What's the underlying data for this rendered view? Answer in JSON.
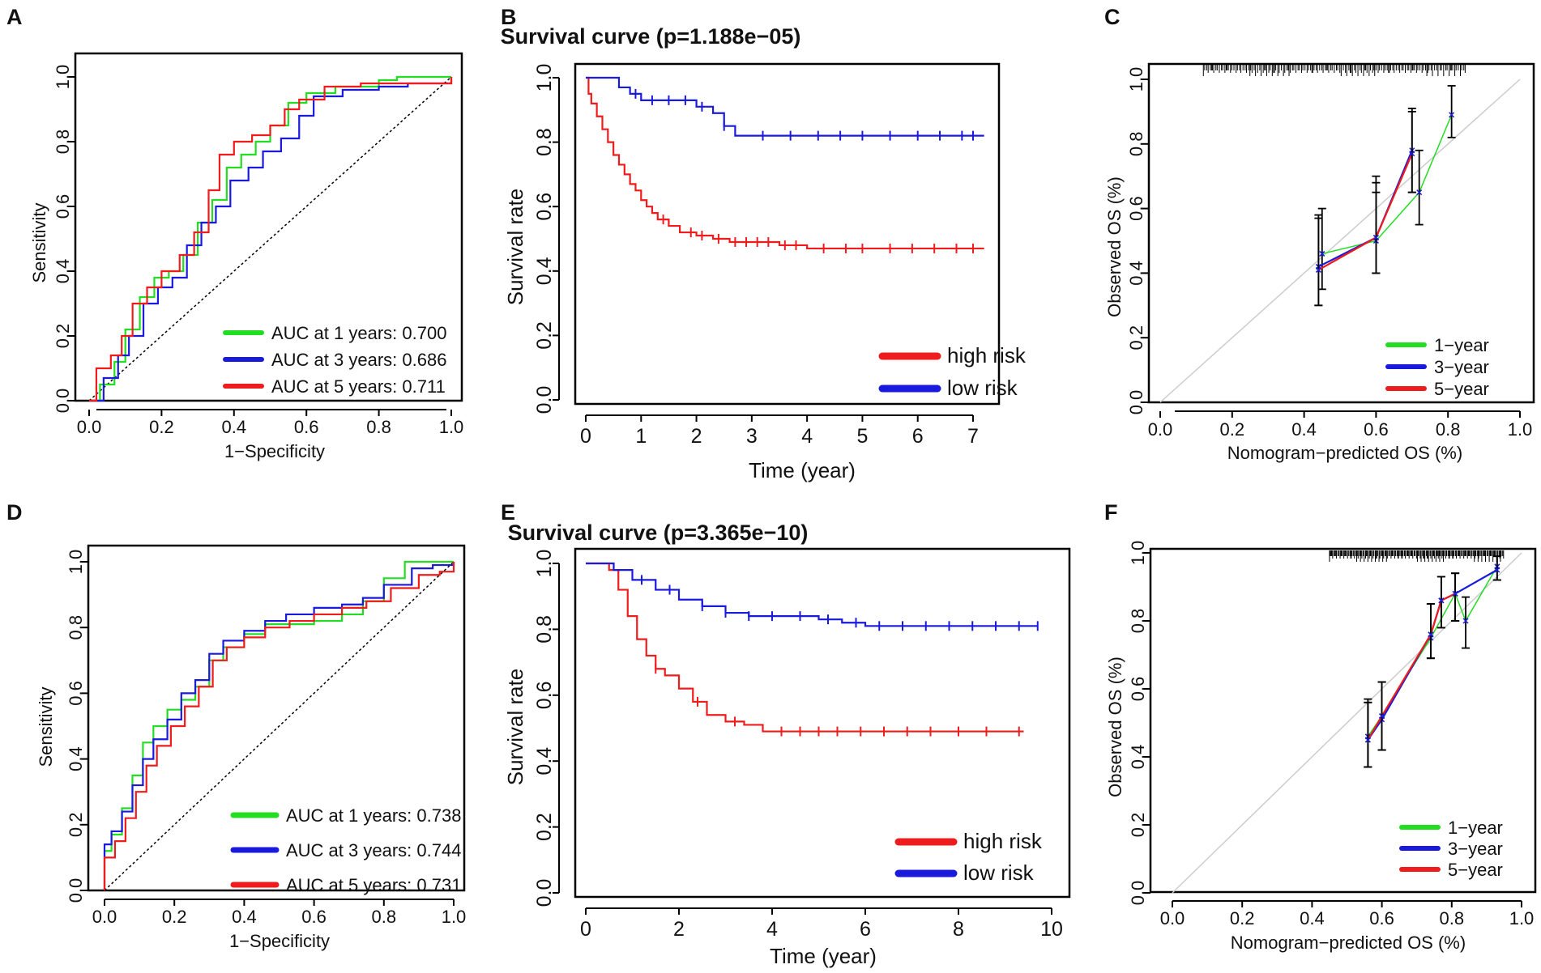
{
  "chart_data": [
    {
      "panel": "A",
      "type": "line",
      "subtype": "roc",
      "title": "",
      "xlabel": "1−Specificity",
      "ylabel": "Sensitivity",
      "xlim": [
        0,
        1
      ],
      "ylim": [
        0,
        1
      ],
      "xticks": [
        "0.0",
        "0.2",
        "0.4",
        "0.6",
        "0.8",
        "1.0"
      ],
      "yticks": [
        "0.0",
        "0.2",
        "0.4",
        "0.6",
        "0.8",
        "1.0"
      ],
      "diagonal": true,
      "legend_position": "bottom-right",
      "series": [
        {
          "name": "AUC at 1 years: 0.700",
          "color": "#22dd22",
          "x": [
            0,
            0.03,
            0.07,
            0.1,
            0.14,
            0.18,
            0.22,
            0.26,
            0.3,
            0.34,
            0.38,
            0.42,
            0.46,
            0.5,
            0.55,
            0.6,
            0.68,
            0.8,
            0.85,
            0.92,
            0.96,
            1.0
          ],
          "y": [
            0,
            0.05,
            0.12,
            0.22,
            0.32,
            0.38,
            0.4,
            0.45,
            0.55,
            0.62,
            0.72,
            0.76,
            0.8,
            0.85,
            0.92,
            0.95,
            0.97,
            0.99,
            1.0,
            1.0,
            1.0,
            1.0
          ]
        },
        {
          "name": "AUC at 3 years: 0.686",
          "color": "#1a1adc",
          "x": [
            0,
            0.04,
            0.08,
            0.11,
            0.15,
            0.19,
            0.23,
            0.27,
            0.31,
            0.35,
            0.39,
            0.44,
            0.48,
            0.53,
            0.58,
            0.62,
            0.7,
            0.8,
            0.88,
            0.94,
            1.0
          ],
          "y": [
            0,
            0.07,
            0.14,
            0.2,
            0.3,
            0.35,
            0.38,
            0.48,
            0.55,
            0.6,
            0.68,
            0.72,
            0.77,
            0.81,
            0.88,
            0.94,
            0.96,
            0.97,
            0.98,
            0.98,
            1.0
          ]
        },
        {
          "name": "AUC at 5 years: 0.711",
          "color": "#ee1c1c",
          "x": [
            0,
            0.02,
            0.06,
            0.09,
            0.12,
            0.16,
            0.2,
            0.25,
            0.29,
            0.33,
            0.36,
            0.4,
            0.45,
            0.5,
            0.54,
            0.58,
            0.65,
            0.75,
            0.85,
            0.95,
            1.0
          ],
          "y": [
            0,
            0.1,
            0.14,
            0.2,
            0.3,
            0.35,
            0.4,
            0.45,
            0.52,
            0.65,
            0.76,
            0.8,
            0.82,
            0.85,
            0.9,
            0.93,
            0.97,
            0.98,
            0.98,
            0.98,
            1.0
          ]
        }
      ]
    },
    {
      "panel": "B",
      "type": "line",
      "subtype": "kaplan-meier",
      "title": "Survival curve (p=1.188e−05)",
      "xlabel": "Time (year)",
      "ylabel": "Survival rate",
      "xlim": [
        0,
        7
      ],
      "ylim": [
        0,
        1
      ],
      "xticks": [
        "0",
        "1",
        "2",
        "3",
        "4",
        "5",
        "6",
        "7"
      ],
      "yticks": [
        "0.0",
        "0.2",
        "0.4",
        "0.6",
        "0.8",
        "1.0"
      ],
      "legend_position": "bottom-right",
      "series": [
        {
          "name": "high risk",
          "color": "#ee1c1c",
          "x": [
            0,
            0.05,
            0.1,
            0.2,
            0.3,
            0.4,
            0.5,
            0.6,
            0.7,
            0.8,
            0.9,
            1.0,
            1.1,
            1.2,
            1.3,
            1.5,
            1.7,
            2.0,
            2.3,
            2.6,
            3.0,
            3.5,
            4.0,
            7.2
          ],
          "y": [
            1.0,
            0.95,
            0.92,
            0.88,
            0.84,
            0.8,
            0.76,
            0.73,
            0.7,
            0.67,
            0.65,
            0.62,
            0.6,
            0.58,
            0.56,
            0.54,
            0.52,
            0.51,
            0.5,
            0.49,
            0.49,
            0.48,
            0.47,
            0.47
          ],
          "censor_x": [
            1.4,
            1.9,
            2.1,
            2.4,
            2.7,
            2.9,
            3.1,
            3.3,
            3.6,
            3.8,
            4.3,
            4.7,
            5.0,
            5.5,
            5.9,
            6.3,
            6.7,
            7.0
          ]
        },
        {
          "name": "low risk",
          "color": "#1a1adc",
          "x": [
            0,
            0.5,
            0.6,
            0.8,
            1.0,
            1.5,
            2.0,
            2.3,
            2.5,
            2.7,
            3.0,
            7.2
          ],
          "y": [
            1.0,
            1.0,
            0.97,
            0.95,
            0.93,
            0.93,
            0.91,
            0.89,
            0.85,
            0.82,
            0.82,
            0.82
          ],
          "censor_x": [
            0.9,
            1.2,
            1.5,
            1.8,
            2.1,
            2.5,
            3.2,
            3.7,
            4.2,
            4.6,
            5.0,
            5.5,
            6.0,
            6.4,
            6.8,
            7.0
          ]
        }
      ]
    },
    {
      "panel": "C",
      "type": "line",
      "subtype": "calibration",
      "title": "",
      "xlabel": "Nomogram−predicted OS (%)",
      "ylabel": "Observed OS (%)",
      "xlim": [
        0,
        1
      ],
      "ylim": [
        0,
        1
      ],
      "xticks": [
        "0.0",
        "0.2",
        "0.4",
        "0.6",
        "0.8",
        "1.0"
      ],
      "yticks": [
        "0.0",
        "0.2",
        "0.4",
        "0.6",
        "0.8",
        "1.0"
      ],
      "legend_position": "bottom-right",
      "series": [
        {
          "name": "1−year",
          "color": "#22dd22",
          "x": [
            0.45,
            0.6,
            0.72,
            0.81
          ],
          "y": [
            0.46,
            0.5,
            0.65,
            0.89
          ],
          "err_low": [
            0.35,
            0.4,
            0.55,
            0.82
          ],
          "err_high": [
            0.6,
            0.65,
            0.78,
            0.98
          ]
        },
        {
          "name": "3−year",
          "color": "#1a1adc",
          "x": [
            0.44,
            0.6,
            0.7
          ],
          "y": [
            0.42,
            0.51,
            0.78
          ],
          "err_low": [
            0.3,
            0.4,
            0.65
          ],
          "err_high": [
            0.58,
            0.7,
            0.91
          ]
        },
        {
          "name": "5−year",
          "color": "#ee1c1c",
          "x": [
            0.44,
            0.6,
            0.7
          ],
          "y": [
            0.41,
            0.51,
            0.77
          ],
          "err_low": [
            0.3,
            0.4,
            0.65
          ],
          "err_high": [
            0.57,
            0.68,
            0.9
          ]
        }
      ]
    },
    {
      "panel": "D",
      "type": "line",
      "subtype": "roc",
      "title": "",
      "xlabel": "1−Specificity",
      "ylabel": "Sensitivity",
      "xlim": [
        0,
        1
      ],
      "ylim": [
        0,
        1
      ],
      "xticks": [
        "0.0",
        "0.2",
        "0.4",
        "0.6",
        "0.8",
        "1.0"
      ],
      "yticks": [
        "0.0",
        "0.2",
        "0.4",
        "0.6",
        "0.8",
        "1.0"
      ],
      "diagonal": true,
      "legend_position": "bottom-right",
      "series": [
        {
          "name": "AUC at 1 years: 0.738",
          "color": "#22dd22",
          "x": [
            0,
            0.0,
            0.02,
            0.05,
            0.08,
            0.11,
            0.14,
            0.18,
            0.22,
            0.26,
            0.3,
            0.34,
            0.4,
            0.46,
            0.52,
            0.6,
            0.68,
            0.74,
            0.8,
            0.86,
            0.92,
            1.0
          ],
          "y": [
            0,
            0.12,
            0.17,
            0.25,
            0.35,
            0.45,
            0.5,
            0.55,
            0.58,
            0.62,
            0.7,
            0.74,
            0.78,
            0.81,
            0.81,
            0.82,
            0.84,
            0.88,
            0.95,
            1.0,
            1.0,
            1.0
          ]
        },
        {
          "name": "AUC at 3 years: 0.744",
          "color": "#1a1adc",
          "x": [
            0,
            0.0,
            0.02,
            0.05,
            0.08,
            0.11,
            0.14,
            0.18,
            0.22,
            0.26,
            0.3,
            0.34,
            0.4,
            0.46,
            0.52,
            0.6,
            0.68,
            0.74,
            0.8,
            0.88,
            0.94,
            1.0
          ],
          "y": [
            0,
            0.14,
            0.18,
            0.24,
            0.32,
            0.4,
            0.46,
            0.52,
            0.6,
            0.64,
            0.72,
            0.76,
            0.79,
            0.82,
            0.84,
            0.86,
            0.87,
            0.89,
            0.93,
            0.98,
            0.99,
            1.0
          ]
        },
        {
          "name": "AUC at 5 years: 0.731",
          "color": "#ee1c1c",
          "x": [
            0,
            0.0,
            0.03,
            0.06,
            0.09,
            0.12,
            0.15,
            0.19,
            0.23,
            0.27,
            0.31,
            0.35,
            0.4,
            0.46,
            0.53,
            0.6,
            0.68,
            0.75,
            0.82,
            0.9,
            0.96,
            1.0
          ],
          "y": [
            0,
            0.1,
            0.15,
            0.22,
            0.3,
            0.38,
            0.44,
            0.5,
            0.56,
            0.62,
            0.7,
            0.74,
            0.77,
            0.8,
            0.82,
            0.84,
            0.86,
            0.88,
            0.92,
            0.96,
            0.97,
            1.0
          ]
        }
      ]
    },
    {
      "panel": "E",
      "type": "line",
      "subtype": "kaplan-meier",
      "title": "Survival curve (p=3.365e−10)",
      "xlabel": "Time (year)",
      "ylabel": "Survival rate",
      "xlim": [
        0,
        10
      ],
      "ylim": [
        0,
        1
      ],
      "xticks": [
        "0",
        "2",
        "4",
        "6",
        "8",
        "10"
      ],
      "yticks": [
        "0.0",
        "0.2",
        "0.4",
        "0.6",
        "0.8",
        "1.0"
      ],
      "legend_position": "bottom-right",
      "series": [
        {
          "name": "high risk",
          "color": "#ee1c1c",
          "x": [
            0,
            0.5,
            0.7,
            0.9,
            1.1,
            1.3,
            1.5,
            1.7,
            2.0,
            2.3,
            2.6,
            3.0,
            3.4,
            3.8,
            4.2,
            9.4
          ],
          "y": [
            1.0,
            0.98,
            0.92,
            0.84,
            0.77,
            0.72,
            0.68,
            0.66,
            0.62,
            0.58,
            0.54,
            0.52,
            0.51,
            0.49,
            0.49,
            0.49
          ],
          "censor_x": [
            1.5,
            2.4,
            3.2,
            4.2,
            4.6,
            5.0,
            5.4,
            5.9,
            6.4,
            6.9,
            7.4,
            8.0,
            8.6,
            9.3
          ]
        },
        {
          "name": "low risk",
          "color": "#1a1adc",
          "x": [
            0,
            0.6,
            1.0,
            1.5,
            2.0,
            2.5,
            3.0,
            3.5,
            4.0,
            4.5,
            5.0,
            5.5,
            6.0,
            9.7
          ],
          "y": [
            1.0,
            0.98,
            0.95,
            0.92,
            0.89,
            0.87,
            0.85,
            0.84,
            0.84,
            0.84,
            0.83,
            0.82,
            0.81,
            0.81
          ],
          "censor_x": [
            1.2,
            1.8,
            2.5,
            3.0,
            3.5,
            4.0,
            4.6,
            5.2,
            5.8,
            6.3,
            6.8,
            7.3,
            7.8,
            8.3,
            8.8,
            9.3,
            9.7
          ]
        }
      ]
    },
    {
      "panel": "F",
      "type": "line",
      "subtype": "calibration",
      "title": "",
      "xlabel": "Nomogram−predicted OS (%)",
      "ylabel": "Observed OS (%)",
      "xlim": [
        0,
        1
      ],
      "ylim": [
        0,
        1
      ],
      "xticks": [
        "0.0",
        "0.2",
        "0.4",
        "0.6",
        "0.8",
        "1.0"
      ],
      "yticks": [
        "0.0",
        "0.2",
        "0.4",
        "0.6",
        "0.8",
        "1.0"
      ],
      "legend_position": "bottom-right",
      "series": [
        {
          "name": "1−year",
          "color": "#22dd22",
          "x": [
            0.56,
            0.6,
            0.74,
            0.81,
            0.84,
            0.93
          ],
          "y": [
            0.46,
            0.52,
            0.75,
            0.88,
            0.8,
            0.96
          ],
          "err_low": [
            0.37,
            0.42,
            0.69,
            0.8,
            0.72,
            0.92
          ],
          "err_high": [
            0.57,
            0.62,
            0.85,
            0.94,
            0.87,
            0.99
          ]
        },
        {
          "name": "3−year",
          "color": "#1a1adc",
          "x": [
            0.56,
            0.6,
            0.74,
            0.77,
            0.81,
            0.93
          ],
          "y": [
            0.45,
            0.51,
            0.76,
            0.86,
            0.88,
            0.95
          ],
          "err_low": [
            0.37,
            0.42,
            0.69,
            0.78,
            0.8,
            0.92
          ],
          "err_high": [
            0.56,
            0.62,
            0.85,
            0.93,
            0.94,
            0.99
          ]
        },
        {
          "name": "5−year",
          "color": "#ee1c1c",
          "x": [
            0.56,
            0.6,
            0.74,
            0.77,
            0.81
          ],
          "y": [
            0.45,
            0.52,
            0.76,
            0.86,
            0.88
          ],
          "err_low": [
            0.37,
            0.42,
            0.69,
            0.78,
            0.8
          ],
          "err_high": [
            0.56,
            0.62,
            0.85,
            0.93,
            0.94
          ]
        }
      ]
    }
  ]
}
